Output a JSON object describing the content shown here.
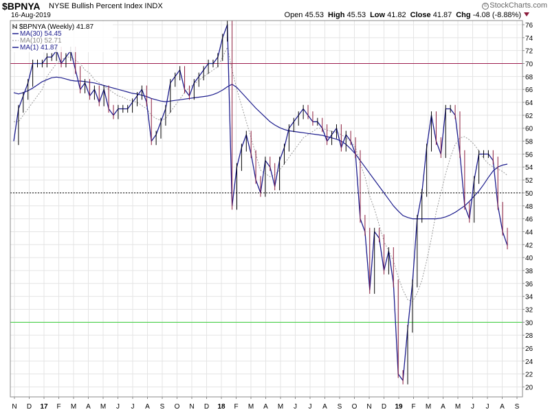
{
  "header": {
    "ticker": "$BPNYA",
    "description": "NYSE Bullish Percent Index",
    "exchange": "INDX",
    "date": "16-Aug-2019",
    "brand": "StockCharts.com",
    "open_label": "Open",
    "open": "45.53",
    "high_label": "High",
    "high": "45.53",
    "low_label": "Low",
    "low": "41.82",
    "close_label": "Close",
    "close": "41.87",
    "chg_label": "Chg",
    "chg": "-4.08 (-8.88%)"
  },
  "legend": {
    "price": "$BPNYA (Weekly) 41.87",
    "ma30": "MA(30) 54.45",
    "ma10": "MA(10) 52.71",
    "ma1": "MA(1) 41.87"
  },
  "colors": {
    "up_bar": "#000000",
    "down_bar": "#8b1a3a",
    "ma30": "#1a1a8c",
    "ma10": "#999999",
    "ma1": "#1a1a8c",
    "line_70": "#9b1c4c",
    "line_50": "#000000",
    "line_30": "#33cc33",
    "grid": "#e4e4e4"
  },
  "chart_data": {
    "type": "line",
    "ylim": [
      18,
      77
    ],
    "y_ticks": [
      20,
      22,
      24,
      26,
      28,
      30,
      32,
      34,
      36,
      38,
      40,
      42,
      44,
      46,
      48,
      50,
      52,
      54,
      56,
      58,
      60,
      62,
      64,
      66,
      68,
      70,
      72,
      74,
      76
    ],
    "x_labels": [
      "N",
      "D",
      "17",
      "F",
      "M",
      "A",
      "M",
      "J",
      "J",
      "A",
      "S",
      "O",
      "N",
      "D",
      "18",
      "F",
      "M",
      "A",
      "M",
      "J",
      "J",
      "A",
      "S",
      "O",
      "N",
      "D",
      "19",
      "F",
      "M",
      "A",
      "M",
      "J",
      "J",
      "A",
      "S"
    ],
    "reference_lines": [
      70,
      50,
      30
    ],
    "grid": true,
    "legend_position": "top-left",
    "series": [
      {
        "name": "MA(1)",
        "values": [
          58,
          63,
          65,
          67,
          70,
          70,
          70,
          71,
          71,
          72,
          70,
          71,
          72,
          69,
          66,
          67,
          65,
          66,
          64,
          66,
          63,
          62,
          63,
          63,
          63,
          64,
          65,
          66,
          64,
          58,
          59,
          61,
          63,
          67,
          68,
          69,
          66,
          65,
          67,
          68,
          69,
          70,
          70,
          71,
          74,
          76,
          48,
          54,
          57,
          59,
          56,
          52,
          50,
          55,
          54,
          51,
          55,
          57,
          60,
          61,
          62,
          63,
          62,
          61,
          61,
          60,
          58,
          59,
          60,
          57,
          59,
          58,
          56,
          46,
          44,
          35,
          44,
          43,
          38,
          41,
          36,
          22,
          21,
          29,
          36,
          46,
          50,
          57,
          62,
          58,
          56,
          63,
          63,
          62,
          56,
          48,
          46,
          52,
          56,
          56,
          56,
          55,
          48,
          44,
          41.87
        ]
      },
      {
        "name": "MA(10)",
        "values": [
          61,
          61,
          62,
          63,
          64,
          65,
          66,
          68,
          69,
          70,
          70.5,
          71,
          71,
          70.5,
          70,
          69,
          68.5,
          67.5,
          67,
          66.5,
          66,
          65.5,
          65,
          64.8,
          64.4,
          64.2,
          64,
          63.5,
          63,
          62,
          61.5,
          61.2,
          61.5,
          62.5,
          63.5,
          64.5,
          65.5,
          66.3,
          66.8,
          67.4,
          68,
          68.5,
          69,
          69.5,
          71,
          72.5,
          69,
          66,
          63.5,
          61,
          58.5,
          56,
          53.5,
          53,
          52.5,
          52.8,
          53.5,
          54.5,
          55.5,
          56.5,
          57.5,
          58.5,
          59,
          59.5,
          60,
          60,
          59.7,
          59.5,
          59.4,
          59,
          58.5,
          58,
          57,
          54.5,
          52.5,
          49.5,
          47.5,
          45,
          42.5,
          41,
          39.5,
          37,
          35,
          33.5,
          33.2,
          34.5,
          36.5,
          39.5,
          43,
          47,
          50,
          53,
          55.5,
          57.5,
          58.5,
          58.7,
          58.2,
          57.5,
          56.5,
          55.3,
          54.5,
          54,
          53.7,
          53.3,
          52.71
        ]
      },
      {
        "name": "MA(30)",
        "values": [
          65.5,
          65.3,
          65.5,
          65.8,
          66.2,
          66.7,
          67.2,
          67.5,
          67.8,
          67.9,
          67.8,
          67.6,
          67.4,
          67.3,
          67.3,
          67.2,
          67.1,
          67,
          66.8,
          66.6,
          66.4,
          66.2,
          66,
          65.8,
          65.6,
          65.4,
          65.3,
          65.1,
          64.9,
          64.6,
          64.4,
          64.2,
          64.1,
          64.2,
          64.3,
          64.4,
          64.5,
          64.6,
          64.7,
          64.8,
          64.9,
          65,
          65.2,
          65.5,
          65.9,
          66.4,
          66.8,
          66.3,
          65.5,
          64.7,
          63.9,
          63.1,
          62.4,
          61.7,
          61,
          60.5,
          60.1,
          59.8,
          59.6,
          59.5,
          59.4,
          59.3,
          59.2,
          59.1,
          59,
          58.9,
          58.7,
          58.5,
          58.3,
          58,
          57.5,
          56.8,
          56,
          55,
          54,
          53,
          52,
          51,
          50,
          49,
          48,
          47.2,
          46.5,
          46.2,
          46,
          46,
          46,
          46,
          46,
          46,
          46.1,
          46.3,
          46.6,
          47,
          47.5,
          48,
          48.7,
          49.5,
          50.3,
          51.3,
          52.4,
          53.4,
          54,
          54.3,
          54.45
        ]
      }
    ]
  }
}
